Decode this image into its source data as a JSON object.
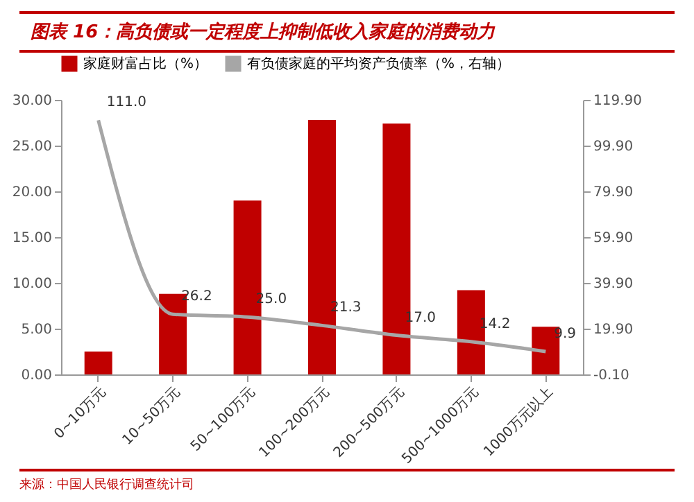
{
  "chart_data": {
    "type": "bar",
    "title": "图表 16：高负债或一定程度上抑制低收入家庭的消费动力",
    "categories": [
      "0~10万元",
      "10~50万元",
      "50~100万元",
      "100~200万元",
      "200~500万元",
      "500~1000万元",
      "1000万元以上"
    ],
    "series": [
      {
        "name": "家庭财富占比（%）",
        "color": "#c00000",
        "values": [
          2.5,
          8.8,
          19.0,
          27.8,
          27.4,
          9.2,
          5.2
        ]
      },
      {
        "name": "有负债家庭的平均资产负债率（%，右轴）",
        "type": "line",
        "axis": "y2",
        "color": "#a6a6a6",
        "values": [
          111.0,
          26.2,
          25.0,
          21.3,
          17.0,
          14.2,
          9.9
        ],
        "value_labels": [
          "111.0",
          "26.2",
          "25.0",
          "21.3",
          "17.0",
          "14.2",
          "9.9"
        ]
      }
    ],
    "ylim": [
      0,
      30
    ],
    "yticks": [
      {
        "value": 0,
        "label": "0.00"
      },
      {
        "value": 5,
        "label": "5.00"
      },
      {
        "value": 10,
        "label": "10.00"
      },
      {
        "value": 15,
        "label": "15.00"
      },
      {
        "value": 20,
        "label": "20.00"
      },
      {
        "value": 25,
        "label": "25.00"
      },
      {
        "value": 30,
        "label": "30.00"
      }
    ],
    "y2lim": [
      -0.1,
      119.9
    ],
    "y2ticks": [
      {
        "value": -0.1,
        "label": "-0.10"
      },
      {
        "value": 19.9,
        "label": "19.90"
      },
      {
        "value": 39.9,
        "label": "39.90"
      },
      {
        "value": 59.9,
        "label": "59.90"
      },
      {
        "value": 79.9,
        "label": "79.90"
      },
      {
        "value": 99.9,
        "label": "99.90"
      },
      {
        "value": 119.9,
        "label": "119.90"
      }
    ],
    "legend": "top",
    "annotations": [
      "来源：中国人民银行调查统计司"
    ]
  }
}
